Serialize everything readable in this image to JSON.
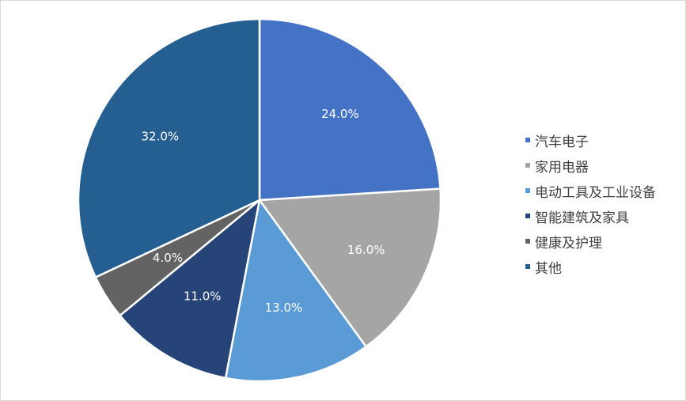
{
  "chart_data": {
    "type": "pie",
    "categories": [
      "汽车电子",
      "家用电器",
      "电动工具及工业设备",
      "智能建筑及家具",
      "健康及护理",
      "其他"
    ],
    "values": [
      24.0,
      16.0,
      13.0,
      11.0,
      4.0,
      32.0
    ],
    "labels": [
      "24.0%",
      "16.0%",
      "13.0%",
      "11.0%",
      "4.0%",
      "32.0%"
    ],
    "colors": [
      "#4472c4",
      "#a5a5a5",
      "#5b9bd5",
      "#264478",
      "#636363",
      "#255e91"
    ],
    "legend_position": "right",
    "start_angle_deg": 0,
    "direction": "clockwise"
  }
}
